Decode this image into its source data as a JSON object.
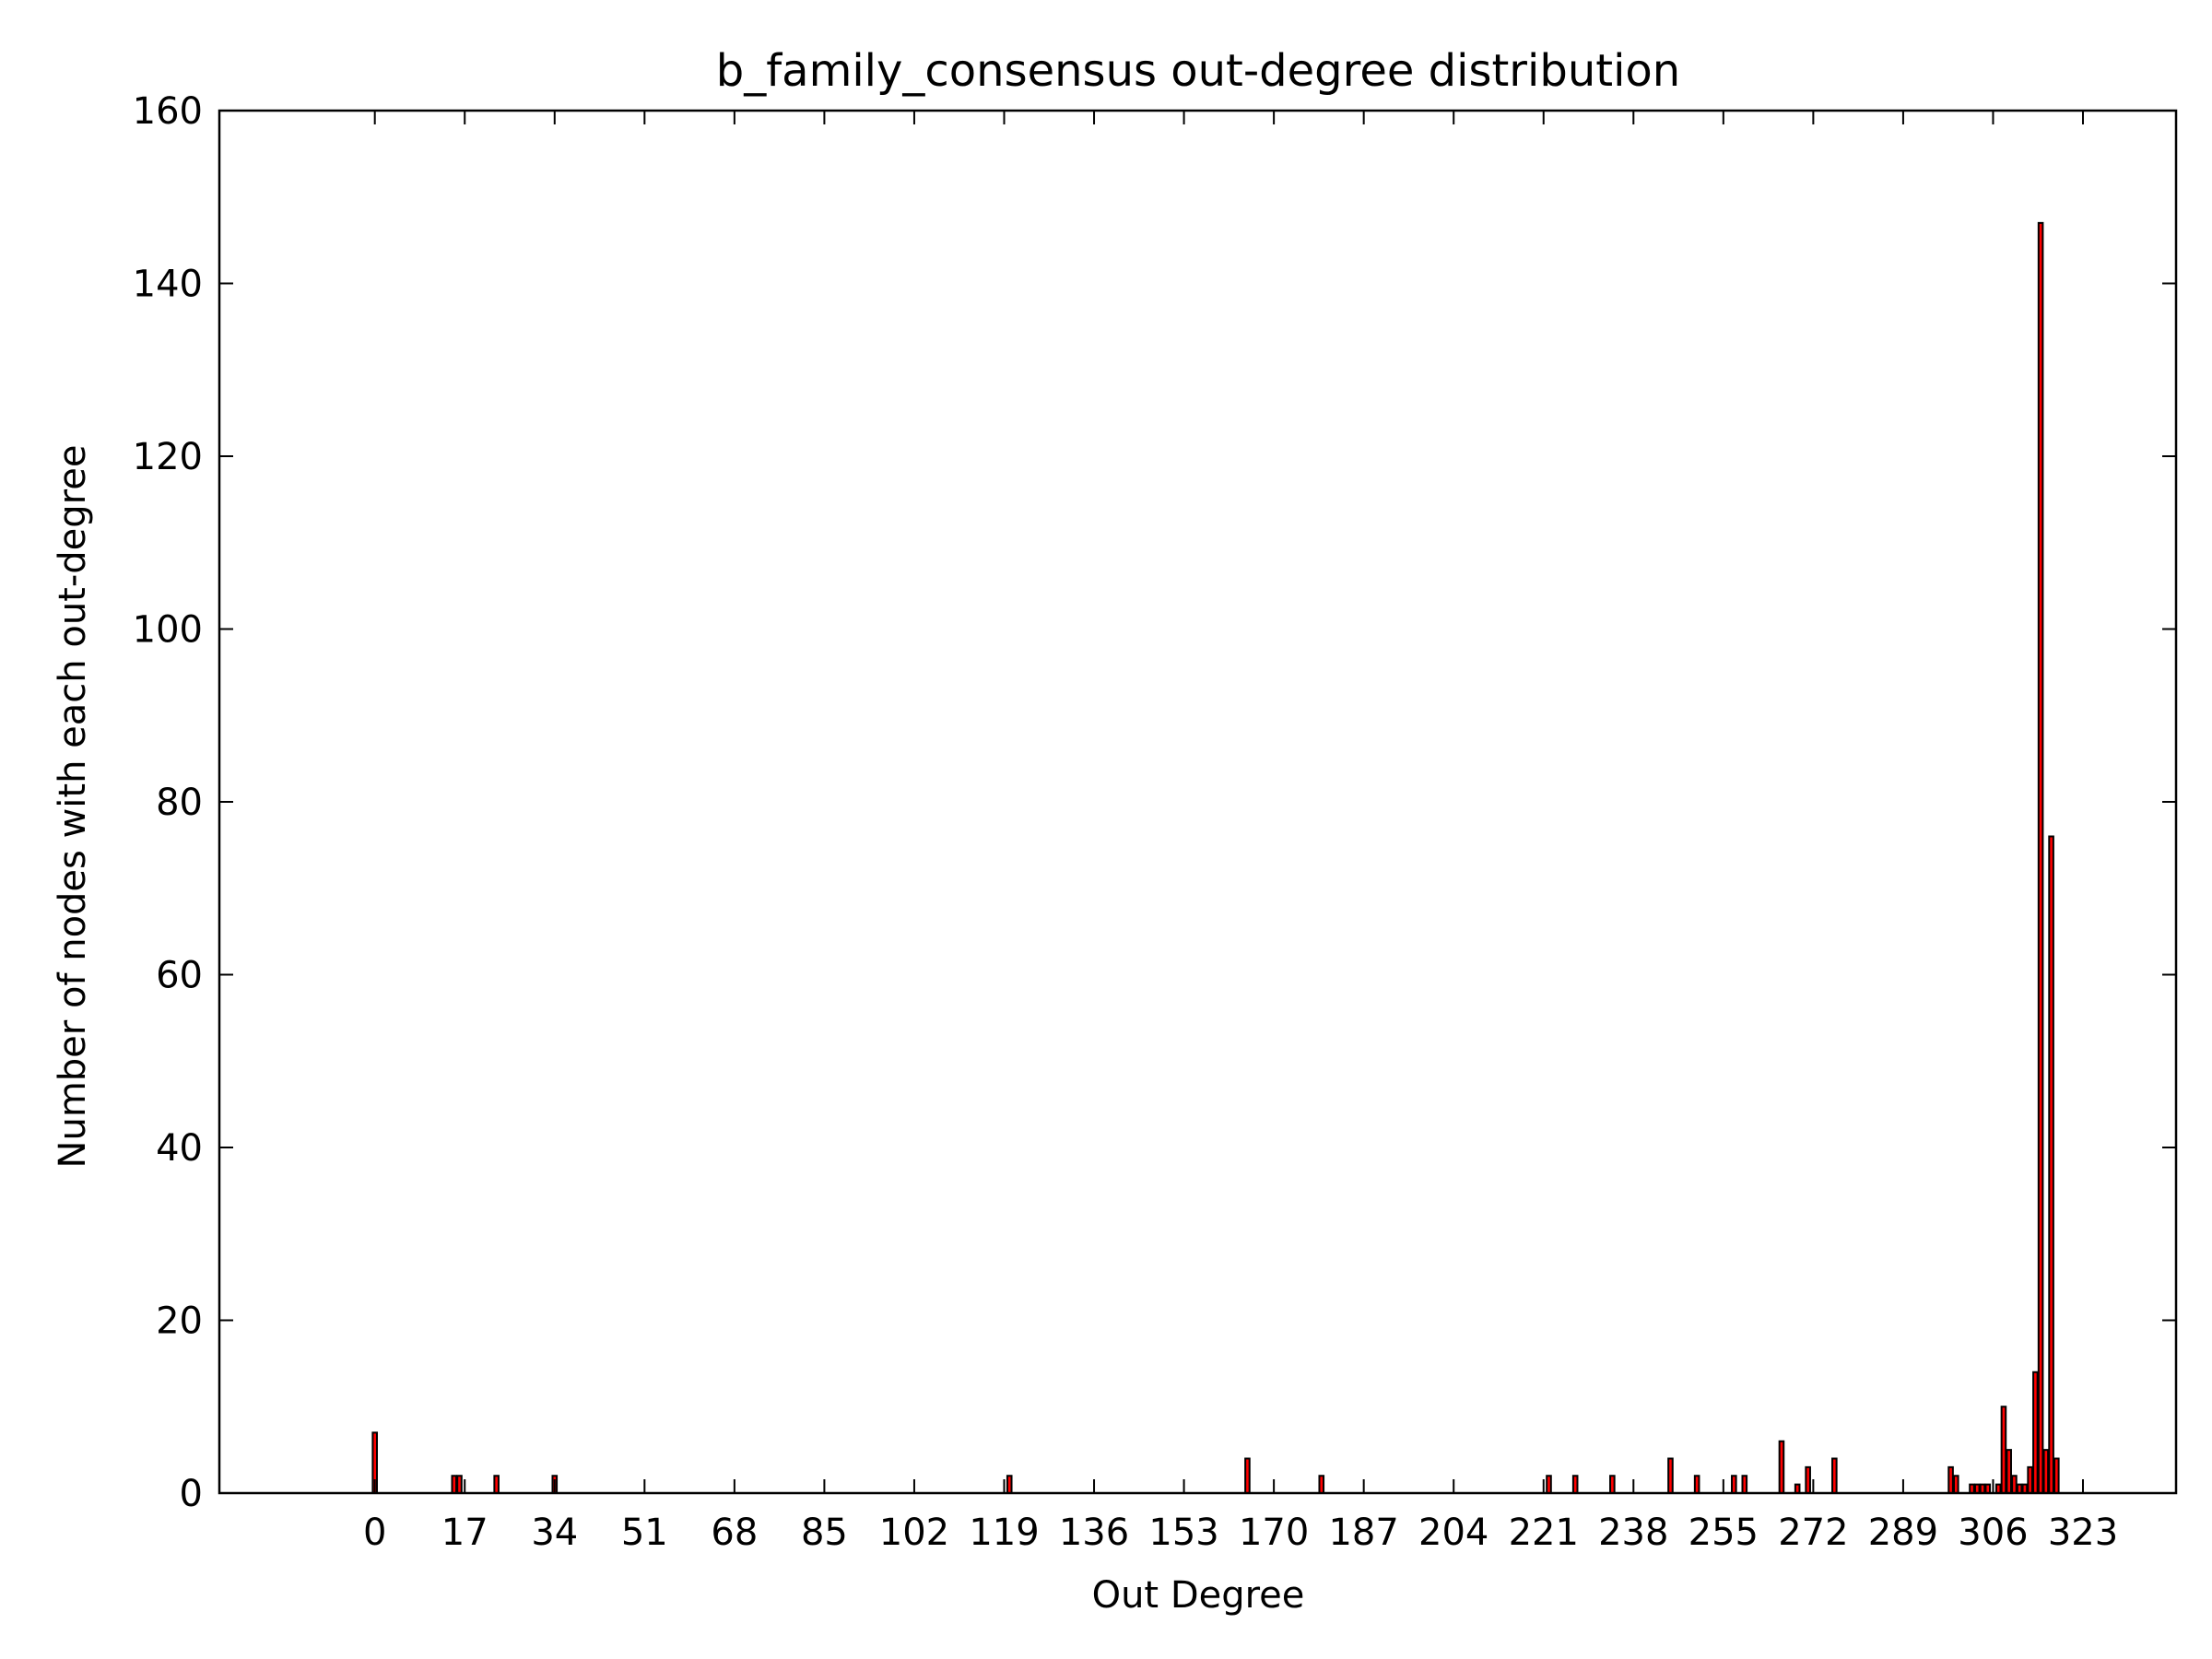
{
  "chart_data": {
    "type": "bar",
    "title": "b_family_consensus out-degree distribution",
    "xlabel": "Out Degree",
    "ylabel": "Number of nodes with each out-degree",
    "xlim": [
      -29,
      341
    ],
    "ylim": [
      0,
      160
    ],
    "x_ticks": [
      0,
      17,
      34,
      51,
      68,
      85,
      102,
      119,
      136,
      153,
      170,
      187,
      204,
      221,
      238,
      255,
      272,
      289,
      306,
      323
    ],
    "x_tick_labels": [
      "0",
      "17",
      "34",
      "51",
      "68",
      "85",
      "102",
      "119",
      "136",
      "153",
      "170",
      "187",
      "204",
      "221",
      "238",
      "255",
      "272",
      "289",
      "306",
      "323"
    ],
    "y_ticks": [
      0,
      20,
      40,
      60,
      80,
      100,
      120,
      140,
      160
    ],
    "y_tick_labels": [
      "0",
      "20",
      "40",
      "60",
      "80",
      "100",
      "120",
      "140",
      "160"
    ],
    "grid": false,
    "legend": "none",
    "colors": {
      "bar_fill": "#ff0000",
      "bar_stroke": "#000000",
      "axis": "#000000",
      "background": "#ffffff"
    },
    "series": [
      {
        "x": [
          0,
          15,
          16,
          23,
          34,
          120,
          165,
          179,
          222,
          227,
          234,
          245,
          250,
          257,
          259,
          266,
          269,
          271,
          276,
          298,
          299,
          302,
          303,
          304,
          305,
          307,
          308,
          309,
          310,
          311,
          312,
          313,
          314,
          315,
          316,
          317,
          318,
          319,
          320
        ],
        "values": [
          7,
          2,
          2,
          2,
          2,
          2,
          4,
          2,
          2,
          2,
          2,
          4,
          2,
          2,
          2,
          6,
          1,
          3,
          4,
          3,
          2,
          1,
          1,
          1,
          1,
          1,
          10,
          5,
          2,
          1,
          1,
          3,
          14,
          147,
          5,
          76,
          4,
          0,
          0
        ]
      }
    ]
  }
}
